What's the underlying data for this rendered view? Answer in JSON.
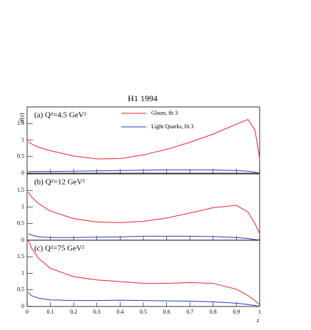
{
  "chart_data": [
    {
      "type": "line",
      "title": "H1 1994",
      "y_label": "zf(z)",
      "panel_label": "(a)  Q²=4.5 GeV²",
      "x": [
        0.005,
        0.02,
        0.05,
        0.1,
        0.2,
        0.3,
        0.4,
        0.5,
        0.6,
        0.7,
        0.8,
        0.9,
        0.95,
        0.98,
        1
      ],
      "series": [
        {
          "name": "Gluon, fit 3",
          "color": "#e8222a",
          "values": [
            0.95,
            0.88,
            0.78,
            0.68,
            0.52,
            0.43,
            0.44,
            0.55,
            0.72,
            0.93,
            1.18,
            1.48,
            1.62,
            1.3,
            0.45
          ]
        },
        {
          "name": "Light Quarks, fit 3",
          "color": "#2a36c8",
          "values": [
            0.05,
            0.05,
            0.05,
            0.05,
            0.06,
            0.07,
            0.08,
            0.09,
            0.1,
            0.1,
            0.1,
            0.08,
            0.06,
            0.03,
            0
          ]
        }
      ],
      "xlim": [
        0,
        1
      ],
      "ylim": [
        0,
        2
      ],
      "xticks": [
        0,
        0.1,
        0.2,
        0.3,
        0.4,
        0.5,
        0.6,
        0.7,
        0.8,
        0.9,
        1
      ],
      "yticks": [
        0,
        0.5,
        1,
        1.5
      ]
    },
    {
      "type": "line",
      "panel_label": "(b)  Q²=12 GeV²",
      "x": [
        0.005,
        0.02,
        0.05,
        0.1,
        0.2,
        0.3,
        0.4,
        0.5,
        0.6,
        0.7,
        0.8,
        0.9,
        0.95,
        0.98,
        1
      ],
      "series": [
        {
          "color": "#e8222a",
          "values": [
            1.45,
            1.3,
            1.1,
            0.88,
            0.65,
            0.55,
            0.53,
            0.57,
            0.67,
            0.82,
            0.98,
            1.05,
            0.85,
            0.5,
            0.2
          ]
        },
        {
          "color": "#2a36c8",
          "values": [
            0.2,
            0.15,
            0.1,
            0.08,
            0.08,
            0.09,
            0.1,
            0.12,
            0.12,
            0.12,
            0.11,
            0.08,
            0.05,
            0.02,
            0
          ]
        }
      ],
      "xlim": [
        0,
        1
      ],
      "ylim": [
        0,
        2
      ],
      "xticks": [
        0,
        0.1,
        0.2,
        0.3,
        0.4,
        0.5,
        0.6,
        0.7,
        0.8,
        0.9,
        1
      ],
      "yticks": [
        0,
        0.5,
        1,
        1.5
      ]
    },
    {
      "type": "line",
      "panel_label": "(c)  Q²=75 GeV²",
      "x_label": "z",
      "x": [
        0.005,
        0.02,
        0.05,
        0.1,
        0.2,
        0.3,
        0.4,
        0.5,
        0.6,
        0.7,
        0.8,
        0.9,
        0.95,
        0.98,
        1
      ],
      "series": [
        {
          "color": "#e8222a",
          "values": [
            2.0,
            1.75,
            1.45,
            1.15,
            0.9,
            0.8,
            0.75,
            0.7,
            0.7,
            0.72,
            0.7,
            0.52,
            0.33,
            0.18,
            0.05
          ]
        },
        {
          "color": "#2a36c8",
          "values": [
            0.42,
            0.32,
            0.25,
            0.2,
            0.18,
            0.18,
            0.19,
            0.18,
            0.17,
            0.16,
            0.14,
            0.1,
            0.06,
            0.03,
            0
          ]
        }
      ],
      "xlim": [
        0,
        1
      ],
      "ylim": [
        0,
        2
      ],
      "xticks": [
        0,
        0.1,
        0.2,
        0.3,
        0.4,
        0.5,
        0.6,
        0.7,
        0.8,
        0.9,
        1
      ],
      "yticks": [
        0,
        0.5,
        1,
        1.5
      ],
      "show_xtick_labels": true
    }
  ]
}
